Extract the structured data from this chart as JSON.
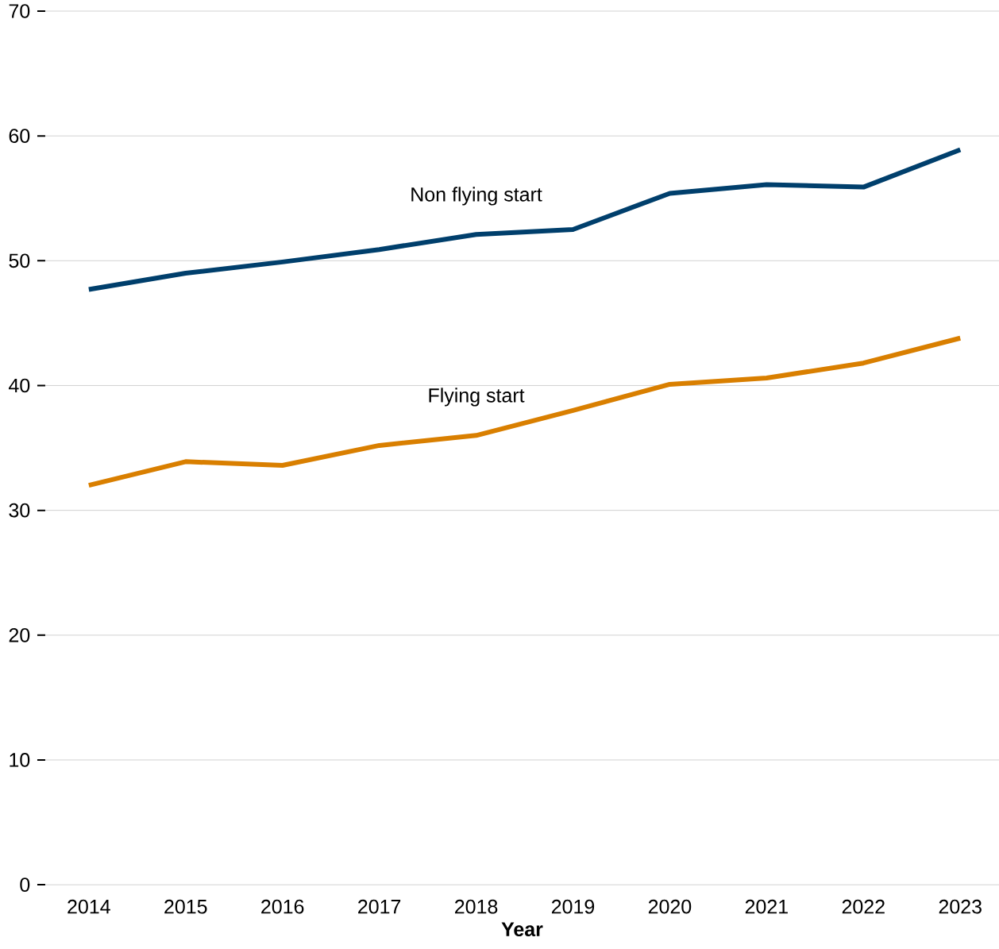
{
  "chart_data": {
    "type": "line",
    "xlabel": "Year",
    "categories": [
      "2014",
      "2015",
      "2016",
      "2017",
      "2018",
      "2019",
      "2020",
      "2021",
      "2022",
      "2023"
    ],
    "series": [
      {
        "name": "Non flying start",
        "color": "#003f6c",
        "values": [
          47.7,
          49.0,
          49.9,
          50.9,
          52.1,
          52.5,
          55.4,
          56.1,
          55.9,
          58.9
        ]
      },
      {
        "name": "Flying start",
        "color": "#d97f00",
        "values": [
          32.0,
          33.9,
          33.6,
          35.2,
          36.0,
          38.0,
          40.1,
          40.6,
          41.8,
          43.8
        ]
      }
    ],
    "ylim": [
      0,
      70
    ],
    "yticks": [
      0,
      10,
      20,
      30,
      40,
      50,
      60,
      70
    ],
    "grid": "y",
    "marker": "none",
    "line_style": "solid"
  }
}
